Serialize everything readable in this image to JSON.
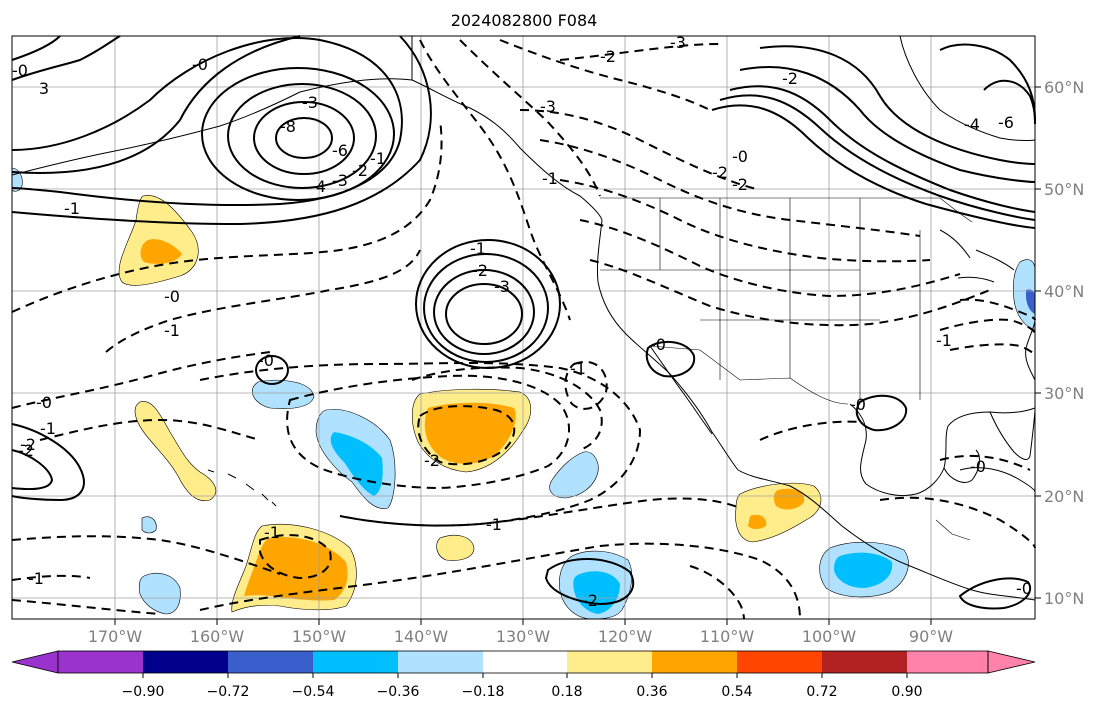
{
  "title": "2024082800 F084",
  "axes": {
    "lon_ticks": [
      "170°W",
      "160°W",
      "150°W",
      "140°W",
      "130°W",
      "120°W",
      "110°W",
      "100°W",
      "90°W"
    ],
    "lat_ticks": [
      "60°N",
      "50°N",
      "40°N",
      "30°N",
      "20°N",
      "10°N"
    ],
    "lon_range": [
      -180,
      -80
    ],
    "lat_range": [
      8,
      65
    ]
  },
  "colorbar": {
    "ticks": [
      "−0.90",
      "−0.72",
      "−0.54",
      "−0.36",
      "−0.18",
      "0.18",
      "0.36",
      "0.54",
      "0.72",
      "0.90"
    ],
    "colors": [
      "#9a32cd",
      "#00008b",
      "#3a5fcd",
      "#00bfff",
      "#b0e2ff",
      "#ffffff",
      "#ffec8b",
      "#ffa500",
      "#ff4500",
      "#b22222",
      "#ff82ab"
    ],
    "extend": "both"
  },
  "contour_labels": [
    "-0",
    "3",
    "-3",
    "-2",
    "-3",
    "-8",
    "-6",
    "-4",
    "-3",
    "-2",
    "-1",
    "-3",
    "-1",
    "-0",
    "-2",
    "-2",
    "-2",
    "-4",
    "-6",
    "-1",
    "-0",
    "-1",
    "-3",
    "-2",
    "-1",
    "-0",
    "-1",
    "-0",
    "-1",
    "-1",
    "-2",
    "-2",
    "-0",
    "-2",
    "-1",
    "-1",
    "-1",
    "-0",
    "-0",
    "-0",
    "-0",
    "-2"
  ],
  "colors": {
    "contour": "#000000",
    "grid": "#a0a0a0",
    "tick_text": "#808080",
    "title_text": "#000000"
  }
}
